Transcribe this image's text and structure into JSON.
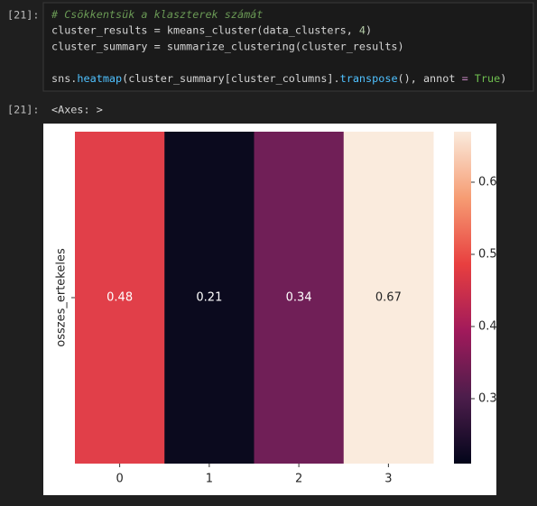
{
  "input_cell": {
    "prompt": "[21]:",
    "lines": [
      [
        {
          "text": "# Csökkentsük a klaszterek számát",
          "color": "#6a9955",
          "italic": true
        }
      ],
      [
        {
          "text": "cluster_results = kmeans_cluster(data_clusters, ",
          "color": "#d4d4d4"
        },
        {
          "text": "4",
          "color": "#b5cea8"
        },
        {
          "text": ")",
          "color": "#d4d4d4"
        }
      ],
      [
        {
          "text": "cluster_summary = summarize_clustering(cluster_results)",
          "color": "#d4d4d4"
        }
      ],
      [],
      [
        {
          "text": "sns.",
          "color": "#d4d4d4"
        },
        {
          "text": "heatmap",
          "color": "#4fc1ff"
        },
        {
          "text": "(cluster_summary[cluster_columns].",
          "color": "#d4d4d4"
        },
        {
          "text": "transpose",
          "color": "#4fc1ff"
        },
        {
          "text": "(), annot ",
          "color": "#d4d4d4"
        },
        {
          "text": "=",
          "color": "#c586c0"
        },
        {
          "text": " ",
          "color": "#d4d4d4"
        },
        {
          "text": "True",
          "color": "#6fbf4f"
        },
        {
          "text": ")",
          "color": "#d4d4d4"
        }
      ]
    ]
  },
  "output_cell": {
    "prompt": "[21]:",
    "text": "<Axes: >"
  },
  "chart_data": {
    "type": "heatmap",
    "categories": [
      "0",
      "1",
      "2",
      "3"
    ],
    "rows": [
      "osszes_ertekeles"
    ],
    "values": [
      [
        0.48,
        0.21,
        0.34,
        0.67
      ]
    ],
    "colors": [
      [
        "#e13f49",
        "#0b0a1e",
        "#701f57",
        "#faebdd"
      ]
    ],
    "annot_colors": [
      [
        "#ffffff",
        "#ffffff",
        "#ffffff",
        "#262626"
      ]
    ],
    "clim": [
      0.21,
      0.67
    ],
    "cticks": [
      0.3,
      0.4,
      0.5,
      0.6
    ],
    "colormap": [
      "#03051a",
      "#4c1d4b",
      "#a11a5b",
      "#e83f3f",
      "#f69c73",
      "#faebdd"
    ]
  }
}
